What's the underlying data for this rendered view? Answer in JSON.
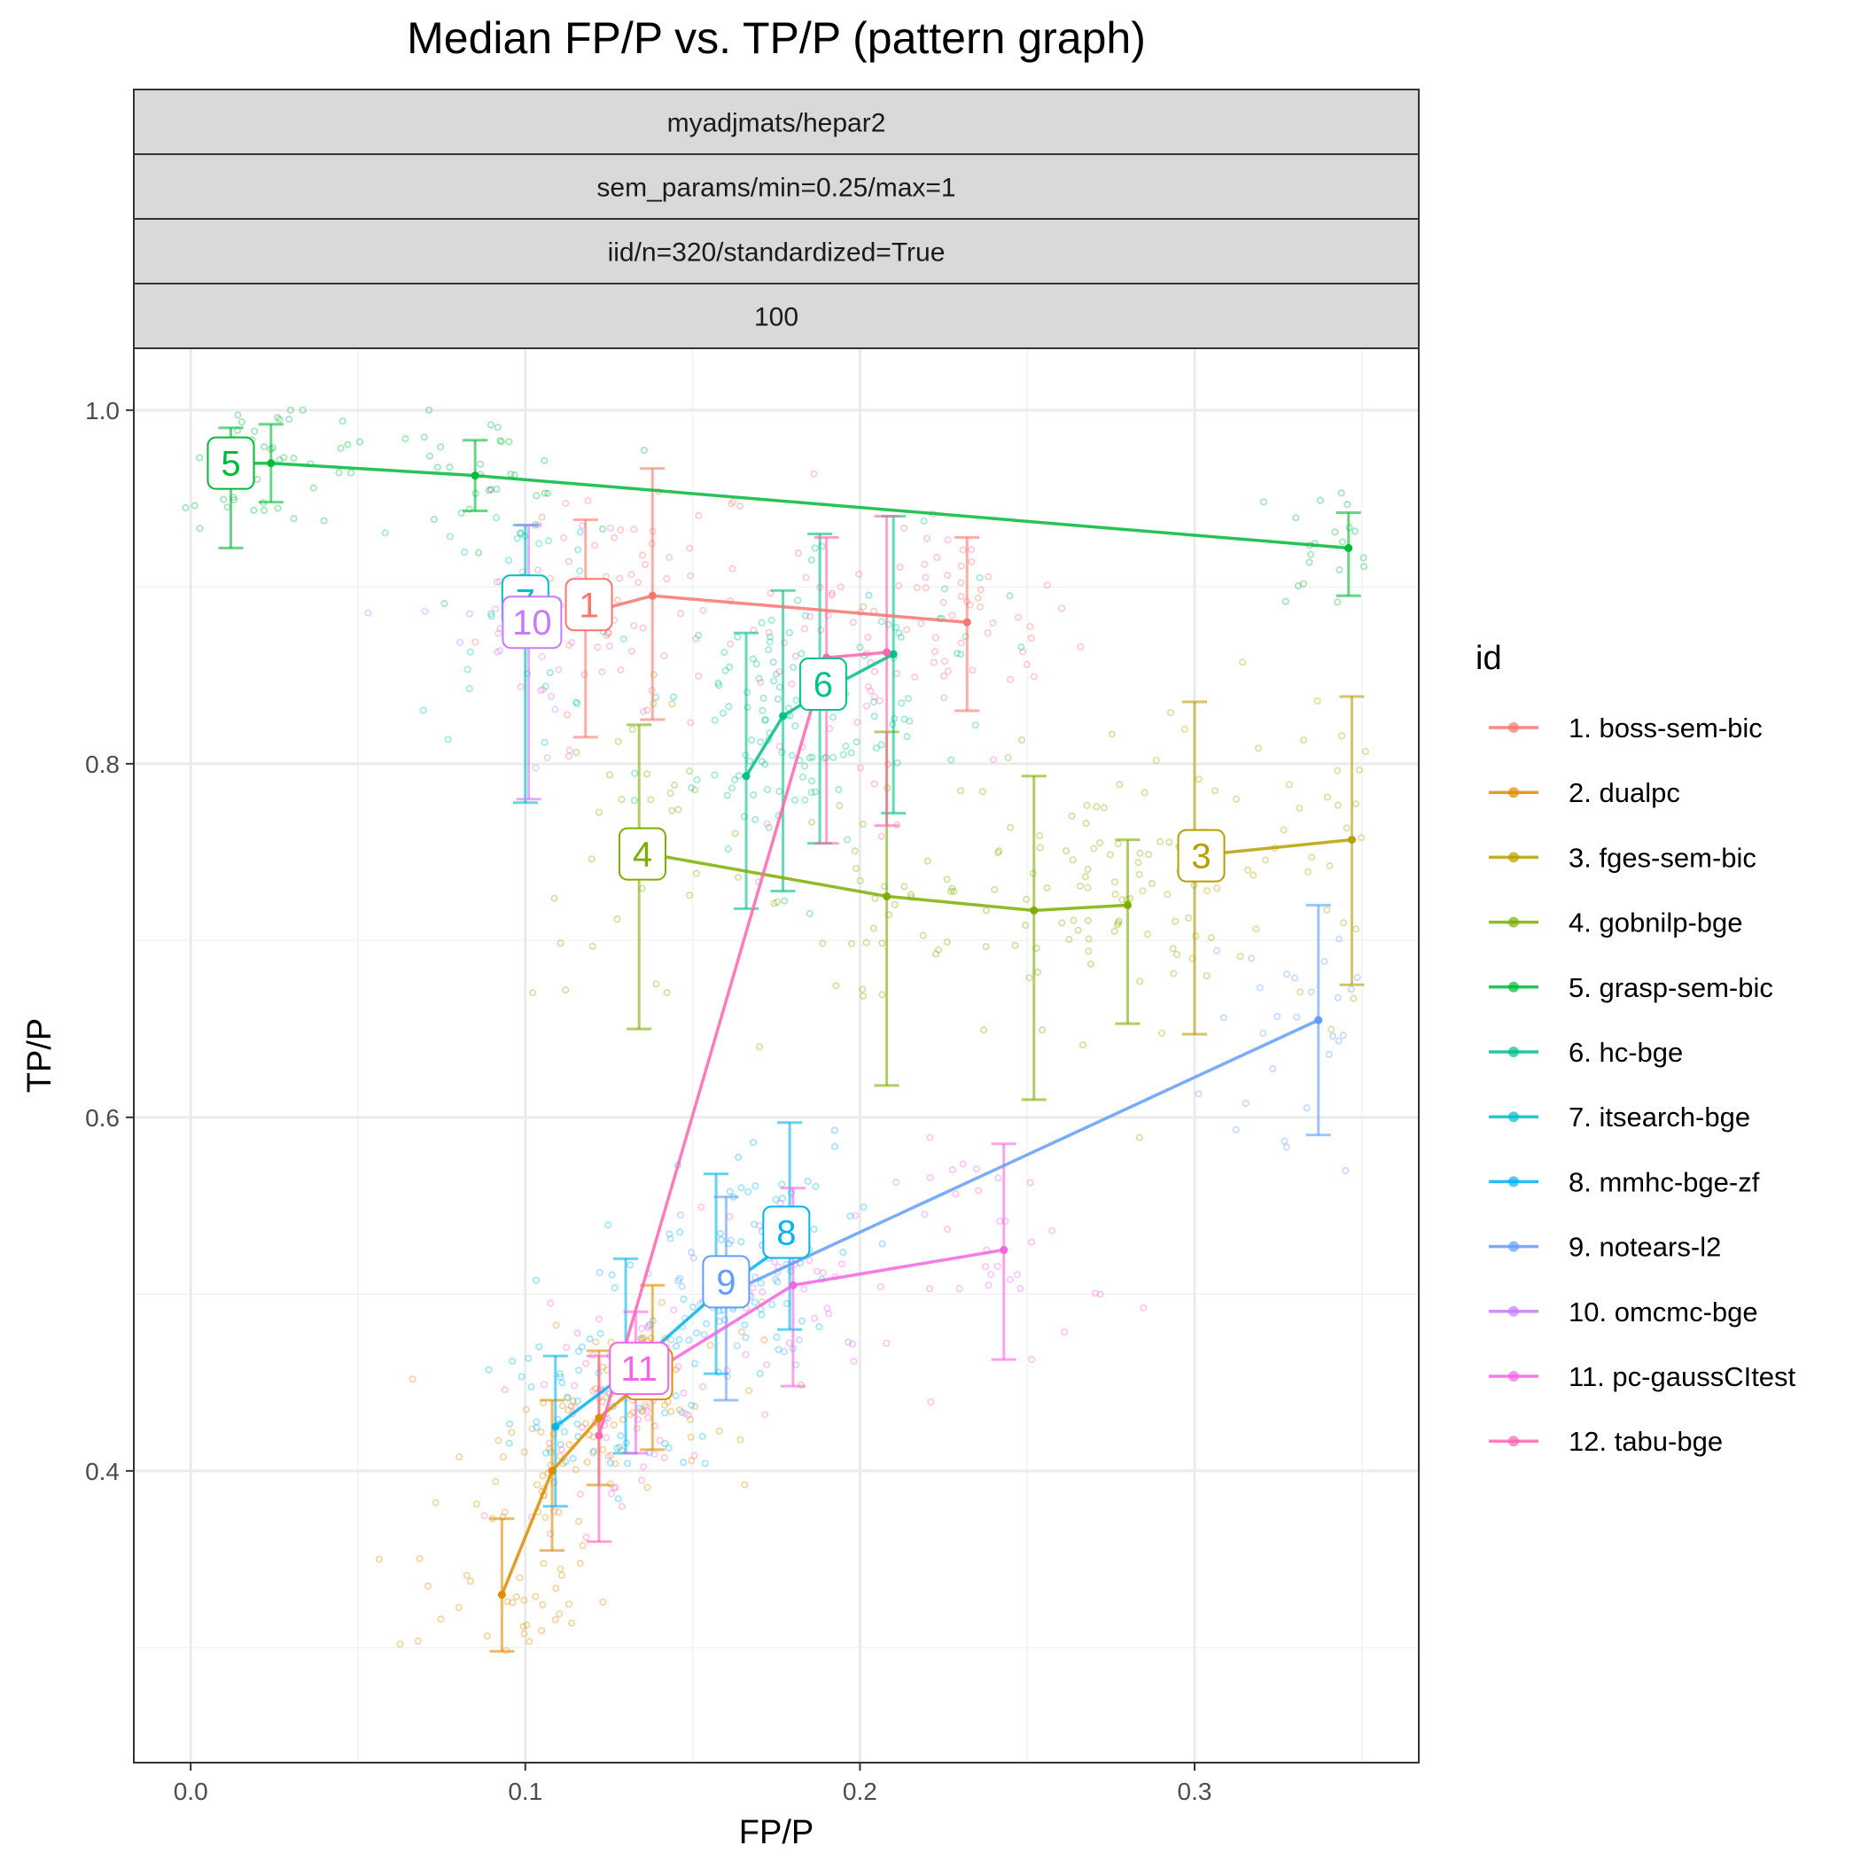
{
  "chart_data": {
    "type": "line",
    "title": "Median FP/P vs. TP/P (pattern graph)",
    "xlabel": "FP/P",
    "ylabel": "TP/P",
    "xlim": [
      -0.017,
      0.367
    ],
    "ylim": [
      0.235,
      1.035
    ],
    "x_ticks": [
      {
        "value": 0.0,
        "label": "0.0"
      },
      {
        "value": 0.1,
        "label": "0.1"
      },
      {
        "value": 0.2,
        "label": "0.2"
      },
      {
        "value": 0.3,
        "label": "0.3"
      }
    ],
    "y_ticks": [
      {
        "value": 0.4,
        "label": "0.4"
      },
      {
        "value": 0.6,
        "label": "0.6"
      },
      {
        "value": 0.8,
        "label": "0.8"
      },
      {
        "value": 1.0,
        "label": "1.0"
      }
    ],
    "strips": [
      "myadjmats/hepar2",
      "sem_params/min=0.25/max=1",
      "iid/n=320/standardized=True",
      "100"
    ],
    "legend": {
      "title": "id",
      "position": "right"
    },
    "grid": true,
    "series": [
      {
        "id": "1",
        "name": "1. boss-sem-bic",
        "color": "#F8766D",
        "points": [
          [
            0.118,
            0.885,
            0.815,
            0.938
          ],
          [
            0.138,
            0.895,
            0.825,
            0.967
          ],
          [
            0.232,
            0.88,
            0.83,
            0.928
          ]
        ],
        "label_at": [
          0.119,
          0.89
        ]
      },
      {
        "id": "2",
        "name": "2. dualpc",
        "color": "#DE8C00",
        "points": [
          [
            0.093,
            0.33,
            0.298,
            0.373
          ],
          [
            0.108,
            0.4,
            0.355,
            0.44
          ],
          [
            0.122,
            0.43,
            0.392,
            0.468
          ],
          [
            0.138,
            0.455,
            0.412,
            0.505
          ]
        ],
        "label_at": [
          0.137,
          0.455
        ]
      },
      {
        "id": "3",
        "name": "3. fges-sem-bic",
        "color": "#B79F00",
        "points": [
          [
            0.3,
            0.748,
            0.647,
            0.835
          ],
          [
            0.347,
            0.757,
            0.675,
            0.838
          ]
        ],
        "label_at": [
          0.302,
          0.748
        ]
      },
      {
        "id": "4",
        "name": "4. gobnilp-bge",
        "color": "#7CAE00",
        "points": [
          [
            0.134,
            0.75,
            0.65,
            0.822
          ],
          [
            0.208,
            0.725,
            0.618,
            0.818
          ],
          [
            0.252,
            0.717,
            0.61,
            0.793
          ],
          [
            0.28,
            0.72,
            0.653,
            0.757
          ]
        ],
        "label_at": [
          0.135,
          0.749
        ]
      },
      {
        "id": "5",
        "name": "5. grasp-sem-bic",
        "color": "#00BA38",
        "points": [
          [
            0.012,
            0.97,
            0.922,
            0.99
          ],
          [
            0.024,
            0.97,
            0.948,
            0.992
          ],
          [
            0.085,
            0.963,
            0.943,
            0.983
          ],
          [
            0.346,
            0.922,
            0.895,
            0.942
          ]
        ],
        "label_at": [
          0.012,
          0.97
        ]
      },
      {
        "id": "6",
        "name": "6. hc-bge",
        "color": "#00C08B",
        "points": [
          [
            0.166,
            0.793,
            0.718,
            0.874
          ],
          [
            0.177,
            0.827,
            0.728,
            0.898
          ],
          [
            0.188,
            0.84,
            0.755,
            0.93
          ],
          [
            0.21,
            0.862,
            0.772,
            0.94
          ]
        ],
        "label_at": [
          0.189,
          0.845
        ]
      },
      {
        "id": "7",
        "name": "7. itsearch-bge",
        "color": "#00BFC4",
        "points": [
          [
            0.1,
            0.888,
            0.778,
            0.935
          ]
        ],
        "label_at": [
          0.1,
          0.892
        ]
      },
      {
        "id": "8",
        "name": "8. mmhc-bge-zf",
        "color": "#00B4F0",
        "points": [
          [
            0.109,
            0.425,
            0.38,
            0.465
          ],
          [
            0.13,
            0.455,
            0.41,
            0.52
          ],
          [
            0.157,
            0.5,
            0.455,
            0.568
          ],
          [
            0.179,
            0.53,
            0.48,
            0.597
          ]
        ],
        "label_at": [
          0.178,
          0.535
        ]
      },
      {
        "id": "9",
        "name": "9. notears-l2",
        "color": "#619CFF",
        "points": [
          [
            0.16,
            0.5,
            0.44,
            0.555
          ],
          [
            0.337,
            0.655,
            0.59,
            0.72
          ]
        ],
        "label_at": [
          0.16,
          0.507
        ]
      },
      {
        "id": "10",
        "name": "10. omcmc-bge",
        "color": "#C77CFF",
        "points": [
          [
            0.101,
            0.87,
            0.78,
            0.935
          ]
        ],
        "label_at": [
          0.102,
          0.88
        ]
      },
      {
        "id": "11",
        "name": "11. pc-gaussCItest",
        "color": "#F564E3",
        "points": [
          [
            0.133,
            0.45,
            0.41,
            0.49
          ],
          [
            0.18,
            0.505,
            0.448,
            0.56
          ],
          [
            0.243,
            0.525,
            0.463,
            0.585
          ]
        ],
        "label_at": [
          0.134,
          0.458
        ]
      },
      {
        "id": "12",
        "name": "12. tabu-bge",
        "color": "#FF64B0",
        "points": [
          [
            0.122,
            0.42,
            0.36,
            0.465
          ],
          [
            0.19,
            0.86,
            0.755,
            0.928
          ],
          [
            0.208,
            0.863,
            0.765,
            0.94
          ]
        ],
        "label_at": null
      }
    ]
  }
}
